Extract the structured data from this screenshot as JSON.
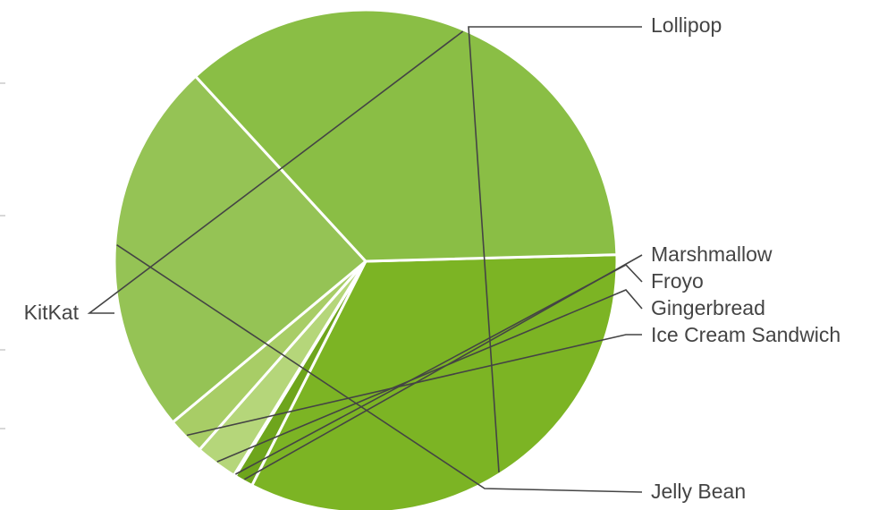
{
  "chart_data": {
    "type": "pie",
    "title": "",
    "slices": [
      {
        "label": "Lollipop",
        "value": 32.6,
        "color": "#7cb424"
      },
      {
        "label": "Marshmallow",
        "value": 1.2,
        "color": "#6ea51c"
      },
      {
        "label": "Froyo",
        "value": 0.1,
        "color": "#c2dd8d"
      },
      {
        "label": "Gingerbread",
        "value": 2.7,
        "color": "#b5d67a"
      },
      {
        "label": "Ice Cream Sandwich",
        "value": 2.4,
        "color": "#a8cd66"
      },
      {
        "label": "Jelly Bean",
        "value": 24.0,
        "color": "#95c355"
      },
      {
        "label": "KitKat",
        "value": 36.1,
        "color": "#8abe45"
      }
    ],
    "start_angle_deg": -1.5,
    "direction": "clockwise",
    "legend": "none",
    "labels": "outside-with-leader-lines",
    "slice_border_color": "#ffffff",
    "label_color": "#444444",
    "leader_line_color": "#444444"
  }
}
